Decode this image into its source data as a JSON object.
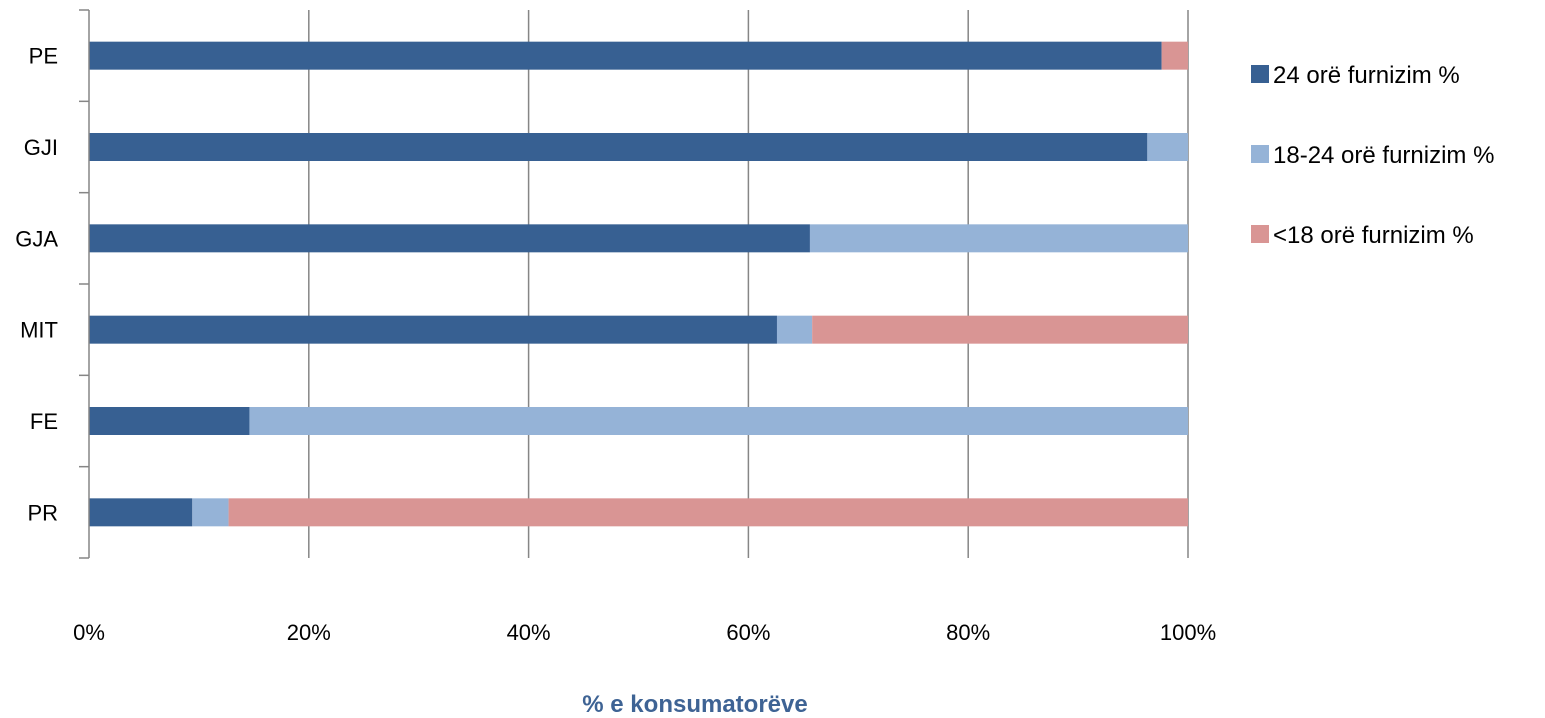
{
  "chart_data": {
    "type": "bar",
    "orientation": "horizontal",
    "stacked": "percent",
    "categories": [
      "PE",
      "GJI",
      "GJA",
      "MIT",
      "FE",
      "PR"
    ],
    "series": [
      {
        "name": "24 orë furnizim %",
        "color": "#376092",
        "values": [
          97.6,
          96.3,
          65.6,
          62.6,
          14.6,
          9.4
        ]
      },
      {
        "name": "18-24 orë furnizim %",
        "color": "#95b3d7",
        "values": [
          0,
          3.7,
          34.4,
          3.2,
          85.4,
          3.3
        ]
      },
      {
        "name": "<18 orë furnizim %",
        "color": "#d99594",
        "values": [
          2.4,
          0,
          0,
          34.2,
          0,
          87.3
        ]
      }
    ],
    "xlabel": "% e konsumatorëve",
    "ylabel": "",
    "xlim": [
      0,
      100
    ],
    "xticks": [
      "0%",
      "20%",
      "40%",
      "60%",
      "80%",
      "100%"
    ],
    "grid": "vertical",
    "legend": "right"
  }
}
